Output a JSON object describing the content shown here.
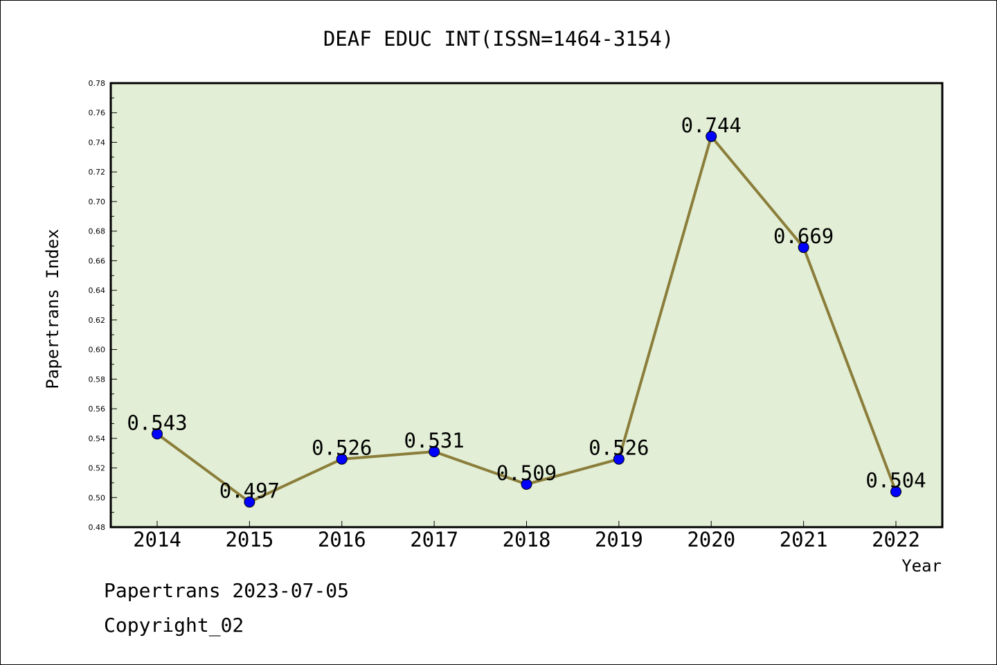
{
  "footer": {
    "line1": "Papertrans 2023-07-05",
    "line2": "Copyright_02"
  },
  "chart_data": {
    "type": "line",
    "title": "DEAF EDUC INT(ISSN=1464-3154)",
    "xlabel": "Year",
    "ylabel": "Papertrans Index",
    "categories": [
      "2014",
      "2015",
      "2016",
      "2017",
      "2018",
      "2019",
      "2020",
      "2021",
      "2022"
    ],
    "values": [
      0.543,
      0.497,
      0.526,
      0.531,
      0.509,
      0.526,
      0.744,
      0.669,
      0.504
    ],
    "data_labels": [
      "0.543",
      "0.497",
      "0.526",
      "0.531",
      "0.509",
      "0.526",
      "0.744",
      "0.669",
      "0.504"
    ],
    "y_ticks": [
      "0.48",
      "0.50",
      "0.52",
      "0.54",
      "0.56",
      "0.58",
      "0.60",
      "0.62",
      "0.64",
      "0.66",
      "0.68",
      "0.70",
      "0.72",
      "0.74",
      "0.76",
      "0.78"
    ],
    "ylim": [
      0.48,
      0.78
    ],
    "grid": false,
    "colors": {
      "plot_background": "#e2efd6",
      "line": "#8b7d3a",
      "marker": "#0000ff"
    }
  }
}
